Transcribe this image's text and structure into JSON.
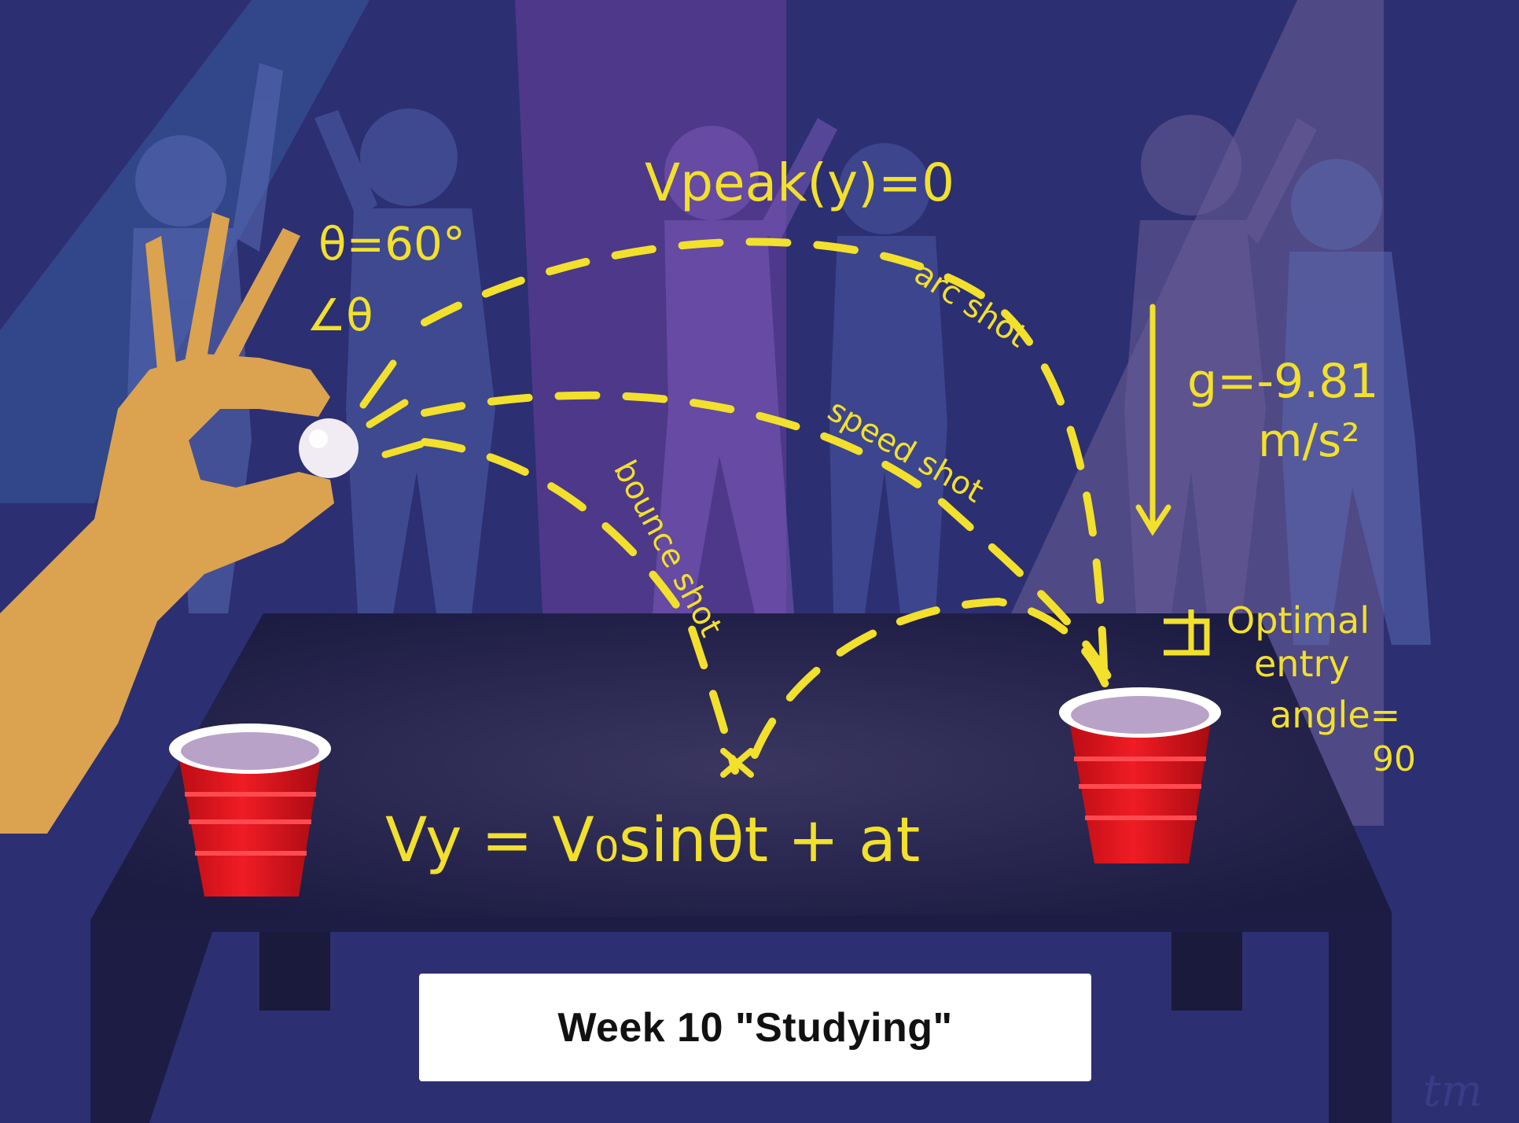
{
  "illustration": {
    "caption": "Week 10 \"Studying\"",
    "signature": "tm",
    "equations": {
      "peak_velocity": "Vpeak(y)=0",
      "launch_angle": "θ=60°",
      "angle_symbol": "∠θ",
      "gravity_line1": "g=-9.81",
      "gravity_line2": "m/s²",
      "vertical_velocity": "Vy = V₀sinθt + at"
    },
    "trajectory_labels": {
      "arc": "arc shot",
      "speed": "speed shot",
      "bounce": "bounce shot"
    },
    "entry_angle_note": [
      "Optimal",
      "entry",
      "angle=",
      "90"
    ],
    "colors": {
      "background": "#2c2f72",
      "annotation": "#f2e02c",
      "cup_red": "#e0141c",
      "table": "#1d1c44",
      "hand": "#dba34f",
      "ball": "#f1ecf3"
    }
  }
}
